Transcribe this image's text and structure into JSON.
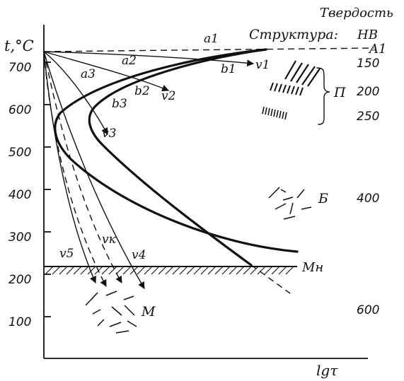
{
  "axes": {
    "y_label": "t,°C",
    "x_label": "lgτ",
    "y_ticks": [
      "700",
      "600",
      "500",
      "400",
      "300",
      "200",
      "100"
    ]
  },
  "header": {
    "hardness": "Твердость",
    "structure": "Структура:",
    "hb": "НВ"
  },
  "hardness_values": [
    "150",
    "200",
    "250",
    "400",
    "600"
  ],
  "lines": {
    "a1_line": "A1",
    "mn_line": "Мн"
  },
  "structures": {
    "pearlite": "П",
    "bainite": "Б",
    "martensite": "М"
  },
  "points": {
    "a1": "a1",
    "a2": "a2",
    "a3": "a3",
    "b1": "b1",
    "b2": "b2",
    "b3": "b3"
  },
  "rates": {
    "v1": "v1",
    "v2": "v2",
    "v3": "v3",
    "v4": "v4",
    "v5": "v5",
    "vk": "vк"
  }
}
